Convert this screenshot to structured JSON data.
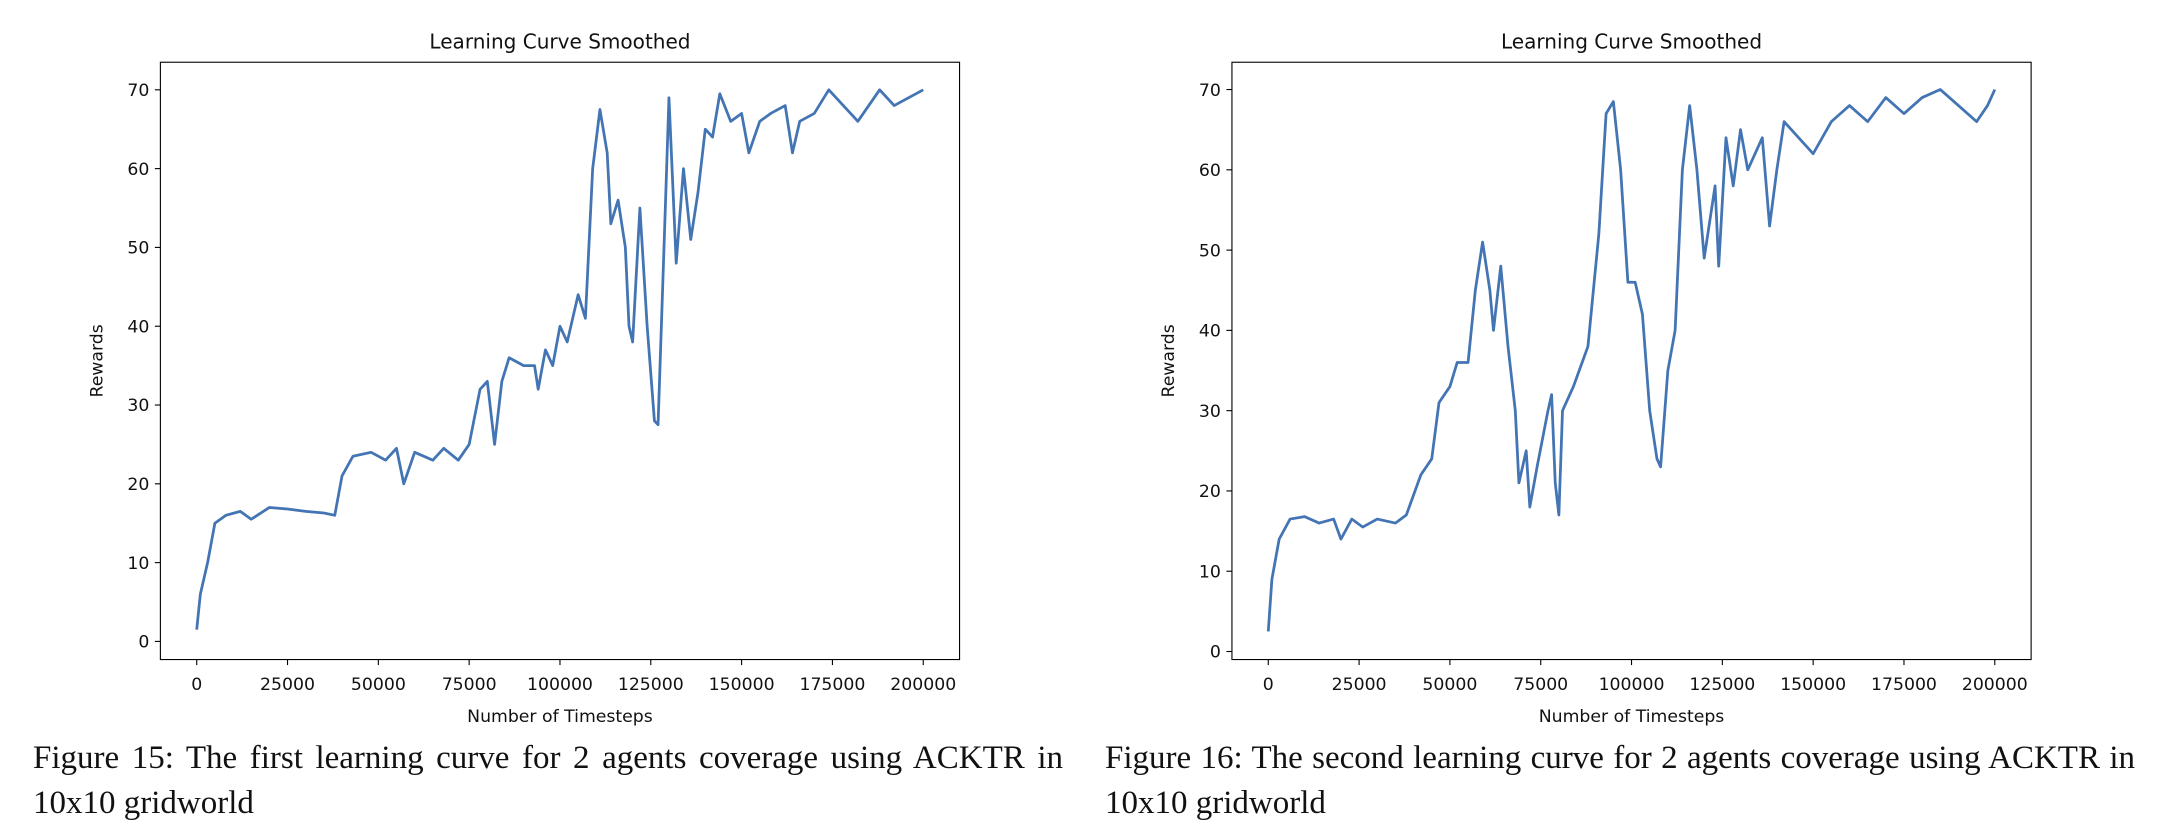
{
  "chart_data": [
    {
      "type": "line",
      "title": "Learning Curve Smoothed",
      "x_label": "Number of Timesteps",
      "y_label": "Rewards",
      "caption": "Figure 15: The first learning curve for 2 agents coverage using ACKTR in 10x10 gridworld",
      "color": "#4374b3",
      "x": [
        0,
        1000,
        3000,
        5000,
        8000,
        12000,
        15000,
        20000,
        25000,
        30000,
        35000,
        38000,
        40000,
        43000,
        48000,
        52000,
        55000,
        57000,
        60000,
        65000,
        68000,
        72000,
        75000,
        78000,
        80000,
        82000,
        84000,
        86000,
        90000,
        93000,
        94000,
        96000,
        98000,
        100000,
        102000,
        105000,
        107000,
        109000,
        111000,
        113000,
        114000,
        116000,
        118000,
        119000,
        120000,
        122000,
        124000,
        126000,
        127000,
        129000,
        130000,
        132000,
        134000,
        136000,
        138000,
        140000,
        142000,
        144000,
        147000,
        150000,
        152000,
        155000,
        158000,
        162000,
        164000,
        166000,
        170000,
        174000,
        178000,
        182000,
        185000,
        188000,
        192000,
        196000,
        200000
      ],
      "values": [
        1.5,
        6,
        10,
        15,
        16,
        16.5,
        15.5,
        17,
        16.8,
        16.5,
        16.3,
        16,
        21,
        23.5,
        24,
        23,
        24.5,
        20,
        24,
        23,
        24.5,
        23,
        25,
        32,
        33,
        25,
        33,
        36,
        35,
        35,
        32,
        37,
        35,
        40,
        38,
        44,
        41,
        60,
        67.5,
        62,
        53,
        56,
        50,
        40,
        38,
        55,
        40,
        28,
        27.5,
        55,
        69,
        48,
        60,
        51,
        57,
        65,
        64,
        69.5,
        66,
        67,
        62,
        66,
        67,
        68,
        62,
        66,
        67,
        70,
        68,
        66,
        68,
        70,
        68,
        69,
        70
      ],
      "xlim": [
        -10000,
        210000
      ],
      "ylim": [
        -2.3,
        73.5
      ],
      "xticks": [
        0,
        25000,
        50000,
        75000,
        100000,
        125000,
        150000,
        175000,
        200000
      ],
      "yticks": [
        0,
        10,
        20,
        30,
        40,
        50,
        60,
        70
      ]
    },
    {
      "type": "line",
      "title": "Learning Curve Smoothed",
      "x_label": "Number of Timesteps",
      "y_label": "Rewards",
      "caption": "Figure 16: The second learning curve for 2 agents coverage using ACKTR in 10x10 gridworld",
      "color": "#4374b3",
      "x": [
        0,
        1000,
        3000,
        6000,
        10000,
        14000,
        18000,
        20000,
        23000,
        26000,
        30000,
        35000,
        38000,
        42000,
        45000,
        47000,
        50000,
        52000,
        55000,
        57000,
        59000,
        61000,
        62000,
        64000,
        66000,
        68000,
        69000,
        71000,
        72000,
        74000,
        77000,
        78000,
        79000,
        80000,
        81000,
        84000,
        88000,
        91000,
        93000,
        95000,
        97000,
        99000,
        101000,
        103000,
        105000,
        107000,
        108000,
        110000,
        112000,
        114000,
        116000,
        118000,
        120000,
        122000,
        123000,
        124000,
        126000,
        128000,
        130000,
        132000,
        136000,
        138000,
        140000,
        142000,
        146000,
        150000,
        155000,
        160000,
        165000,
        170000,
        175000,
        180000,
        185000,
        190000,
        195000,
        198000,
        200000
      ],
      "values": [
        2.5,
        9,
        14,
        16.5,
        16.8,
        16,
        16.5,
        14,
        16.5,
        15.5,
        16.5,
        16,
        17,
        22,
        24,
        31,
        33,
        36,
        36,
        45,
        51,
        45,
        40,
        48,
        38,
        30,
        21,
        25,
        18,
        23,
        30,
        32,
        21,
        17,
        30,
        33,
        38,
        52,
        67,
        68.5,
        60,
        46,
        46,
        42,
        30,
        24,
        23,
        35,
        40,
        60,
        68,
        60,
        49,
        55,
        58,
        48,
        64,
        58,
        65,
        60,
        64,
        53,
        60,
        66,
        64,
        62,
        66,
        68,
        66,
        69,
        67,
        69,
        70,
        68,
        66,
        68,
        70
      ],
      "xlim": [
        -10000,
        210000
      ],
      "ylim": [
        -1.0,
        73.4
      ],
      "xticks": [
        0,
        25000,
        50000,
        75000,
        100000,
        125000,
        150000,
        175000,
        200000
      ],
      "yticks": [
        0,
        10,
        20,
        30,
        40,
        50,
        60,
        70
      ]
    }
  ]
}
